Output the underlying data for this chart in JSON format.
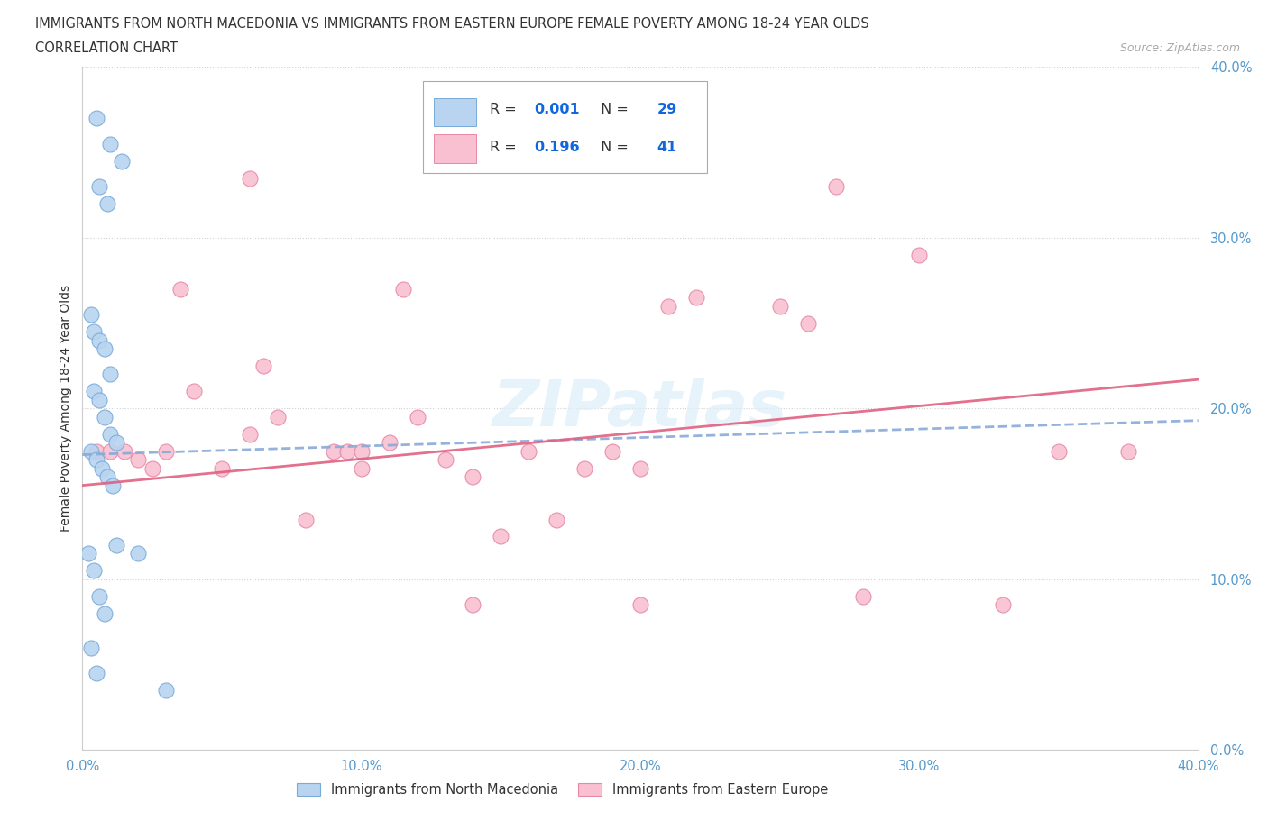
{
  "title_line1": "IMMIGRANTS FROM NORTH MACEDONIA VS IMMIGRANTS FROM EASTERN EUROPE FEMALE POVERTY AMONG 18-24 YEAR OLDS",
  "title_line2": "CORRELATION CHART",
  "source": "Source: ZipAtlas.com",
  "ylabel": "Female Poverty Among 18-24 Year Olds",
  "xlim": [
    0.0,
    0.4
  ],
  "ylim": [
    0.0,
    0.4
  ],
  "xticks": [
    0.0,
    0.1,
    0.2,
    0.3,
    0.4
  ],
  "yticks": [
    0.0,
    0.1,
    0.2,
    0.3,
    0.4
  ],
  "blue_R": "0.001",
  "blue_N": "29",
  "pink_R": "0.196",
  "pink_N": "41",
  "blue_face": "#b8d4f0",
  "blue_edge": "#7aaad8",
  "pink_face": "#f8c0d0",
  "pink_edge": "#e888a8",
  "blue_line_color": "#88aad8",
  "pink_line_color": "#e06080",
  "legend_label_blue": "Immigrants from North Macedonia",
  "legend_label_pink": "Immigrants from Eastern Europe",
  "blue_x": [
    0.005,
    0.01,
    0.014,
    0.006,
    0.009,
    0.003,
    0.004,
    0.006,
    0.008,
    0.01,
    0.004,
    0.006,
    0.008,
    0.01,
    0.012,
    0.003,
    0.005,
    0.007,
    0.009,
    0.011,
    0.002,
    0.004,
    0.006,
    0.008,
    0.012,
    0.003,
    0.005,
    0.02,
    0.03
  ],
  "blue_y": [
    0.37,
    0.355,
    0.345,
    0.33,
    0.32,
    0.255,
    0.245,
    0.24,
    0.235,
    0.22,
    0.21,
    0.205,
    0.195,
    0.185,
    0.18,
    0.175,
    0.17,
    0.165,
    0.16,
    0.155,
    0.115,
    0.105,
    0.09,
    0.08,
    0.12,
    0.06,
    0.045,
    0.115,
    0.035
  ],
  "pink_x": [
    0.005,
    0.01,
    0.015,
    0.02,
    0.025,
    0.03,
    0.035,
    0.04,
    0.05,
    0.06,
    0.065,
    0.07,
    0.08,
    0.09,
    0.095,
    0.1,
    0.11,
    0.115,
    0.12,
    0.13,
    0.14,
    0.15,
    0.16,
    0.17,
    0.18,
    0.19,
    0.2,
    0.21,
    0.22,
    0.25,
    0.26,
    0.27,
    0.3,
    0.33,
    0.35,
    0.375,
    0.06,
    0.1,
    0.14,
    0.28,
    0.2
  ],
  "pink_y": [
    0.175,
    0.175,
    0.175,
    0.17,
    0.165,
    0.175,
    0.27,
    0.21,
    0.165,
    0.185,
    0.225,
    0.195,
    0.135,
    0.175,
    0.175,
    0.165,
    0.18,
    0.27,
    0.195,
    0.17,
    0.16,
    0.125,
    0.175,
    0.135,
    0.165,
    0.175,
    0.165,
    0.26,
    0.265,
    0.26,
    0.25,
    0.33,
    0.29,
    0.085,
    0.175,
    0.175,
    0.335,
    0.175,
    0.085,
    0.09,
    0.085
  ],
  "bg_color": "#ffffff",
  "grid_color": "#cccccc",
  "tick_color": "#5599cc",
  "text_color": "#333333",
  "legend_r_n_color": "#1166dd",
  "watermark_color": "#ddeef8"
}
